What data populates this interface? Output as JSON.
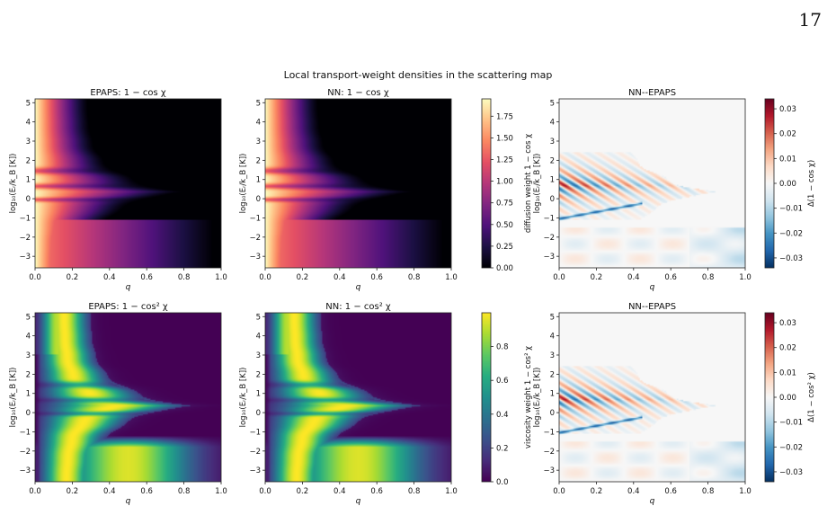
{
  "page_number": "17",
  "figure": {
    "suptitle": "Local transport-weight densities in the scattering map"
  },
  "colormaps": {
    "magma": [
      "#000004",
      "#1c1044",
      "#4f127b",
      "#812581",
      "#b5367a",
      "#e55064",
      "#fb8761",
      "#fec287",
      "#fcfdbf"
    ],
    "viridis": [
      "#440154",
      "#472c7a",
      "#3b518b",
      "#2c718e",
      "#21908d",
      "#27ad81",
      "#5cc863",
      "#aadc32",
      "#fde725"
    ],
    "rdbu": [
      "#053061",
      "#2166ac",
      "#4393c3",
      "#92c5de",
      "#d1e5f0",
      "#f7f7f7",
      "#fddbc7",
      "#f4a582",
      "#d6604d",
      "#b2182b",
      "#67001f"
    ]
  },
  "chart_data": [
    {
      "type": "heatmap",
      "title": "EPAPS: 1 − cos χ",
      "xlabel": "q",
      "ylabel": "log₁₀(Eᵣ/k_B [K])",
      "xlim": [
        0.0,
        1.0
      ],
      "ylim": [
        -3.6,
        5.2
      ],
      "xticks": [
        "0.0",
        "0.2",
        "0.4",
        "0.6",
        "0.8",
        "1.0"
      ],
      "yticks": [
        "−3",
        "−2",
        "−1",
        "0",
        "1",
        "2",
        "3",
        "4",
        "5"
      ],
      "cmap": "magma",
      "field": "cos",
      "vrange": [
        0.0,
        1.95
      ]
    },
    {
      "type": "heatmap",
      "title": "NN: 1 − cos χ",
      "xlabel": "q",
      "ylabel": "log₁₀(Eᵣ/k_B [K])",
      "xlim": [
        0.0,
        1.0
      ],
      "ylim": [
        -3.6,
        5.2
      ],
      "xticks": [
        "0.0",
        "0.2",
        "0.4",
        "0.6",
        "0.8",
        "1.0"
      ],
      "yticks": [
        "−3",
        "−2",
        "−1",
        "0",
        "1",
        "2",
        "3",
        "4",
        "5"
      ],
      "cmap": "magma",
      "field": "cos",
      "vrange": [
        0.0,
        1.95
      ],
      "colorbar": {
        "label": "diffusion weight 1 − cos χ",
        "ticks": [
          "0.00",
          "0.25",
          "0.50",
          "0.75",
          "1.00",
          "1.25",
          "1.50",
          "1.75"
        ],
        "tick_values": [
          0.0,
          0.25,
          0.5,
          0.75,
          1.0,
          1.25,
          1.5,
          1.75
        ],
        "range": [
          0.0,
          1.95
        ]
      }
    },
    {
      "type": "heatmap",
      "title": "NN--EPAPS",
      "xlabel": "q",
      "ylabel": "log₁₀(Eᵣ/k_B [K])",
      "xlim": [
        0.0,
        1.0
      ],
      "ylim": [
        -3.6,
        5.2
      ],
      "xticks": [
        "0.0",
        "0.2",
        "0.4",
        "0.6",
        "0.8",
        "1.0"
      ],
      "yticks": [
        "−3",
        "−2",
        "−1",
        "0",
        "1",
        "2",
        "3",
        "4",
        "5"
      ],
      "cmap": "rdbu",
      "field": "diff",
      "colorbar": {
        "label": "Δ(1 − cos χ)",
        "ticks": [
          "−0.03",
          "−0.02",
          "−0.01",
          "0.00",
          "0.01",
          "0.02",
          "0.03"
        ],
        "tick_values": [
          -0.03,
          -0.02,
          -0.01,
          0.0,
          0.01,
          0.02,
          0.03
        ],
        "range": [
          -0.034,
          0.034
        ]
      }
    },
    {
      "type": "heatmap",
      "title": "EPAPS: 1 − cos² χ",
      "xlabel": "q",
      "ylabel": "log₁₀(Eᵣ/k_B [K])",
      "xlim": [
        0.0,
        1.0
      ],
      "ylim": [
        -3.6,
        5.2
      ],
      "xticks": [
        "0.0",
        "0.2",
        "0.4",
        "0.6",
        "0.8",
        "1.0"
      ],
      "yticks": [
        "−3",
        "−2",
        "−1",
        "0",
        "1",
        "2",
        "3",
        "4",
        "5"
      ],
      "cmap": "viridis",
      "field": "cos2",
      "vrange": [
        0.0,
        1.0
      ]
    },
    {
      "type": "heatmap",
      "title": "NN: 1 − cos² χ",
      "xlabel": "q",
      "ylabel": "log₁₀(Eᵣ/k_B [K])",
      "xlim": [
        0.0,
        1.0
      ],
      "ylim": [
        -3.6,
        5.2
      ],
      "xticks": [
        "0.0",
        "0.2",
        "0.4",
        "0.6",
        "0.8",
        "1.0"
      ],
      "yticks": [
        "−3",
        "−2",
        "−1",
        "0",
        "1",
        "2",
        "3",
        "4",
        "5"
      ],
      "cmap": "viridis",
      "field": "cos2",
      "vrange": [
        0.0,
        1.0
      ],
      "colorbar": {
        "label": "viscosity weight 1 − cos² χ",
        "ticks": [
          "0.0",
          "0.2",
          "0.4",
          "0.6",
          "0.8"
        ],
        "tick_values": [
          0.0,
          0.2,
          0.4,
          0.6,
          0.8
        ],
        "range": [
          0.0,
          1.0
        ]
      }
    },
    {
      "type": "heatmap",
      "title": "NN--EPAPS",
      "xlabel": "q",
      "ylabel": "log₁₀(Eᵣ/k_B [K])",
      "xlim": [
        0.0,
        1.0
      ],
      "ylim": [
        -3.6,
        5.2
      ],
      "xticks": [
        "0.0",
        "0.2",
        "0.4",
        "0.6",
        "0.8",
        "1.0"
      ],
      "yticks": [
        "−3",
        "−2",
        "−1",
        "0",
        "1",
        "2",
        "3",
        "4",
        "5"
      ],
      "cmap": "rdbu",
      "field": "diff",
      "colorbar": {
        "label": "Δ(1 − cos² χ)",
        "ticks": [
          "−0.03",
          "−0.02",
          "−0.01",
          "0.00",
          "0.01",
          "0.02",
          "0.03"
        ],
        "tick_values": [
          -0.03,
          -0.02,
          -0.01,
          0.0,
          0.01,
          0.02,
          0.03
        ],
        "range": [
          -0.034,
          0.034
        ]
      }
    }
  ]
}
